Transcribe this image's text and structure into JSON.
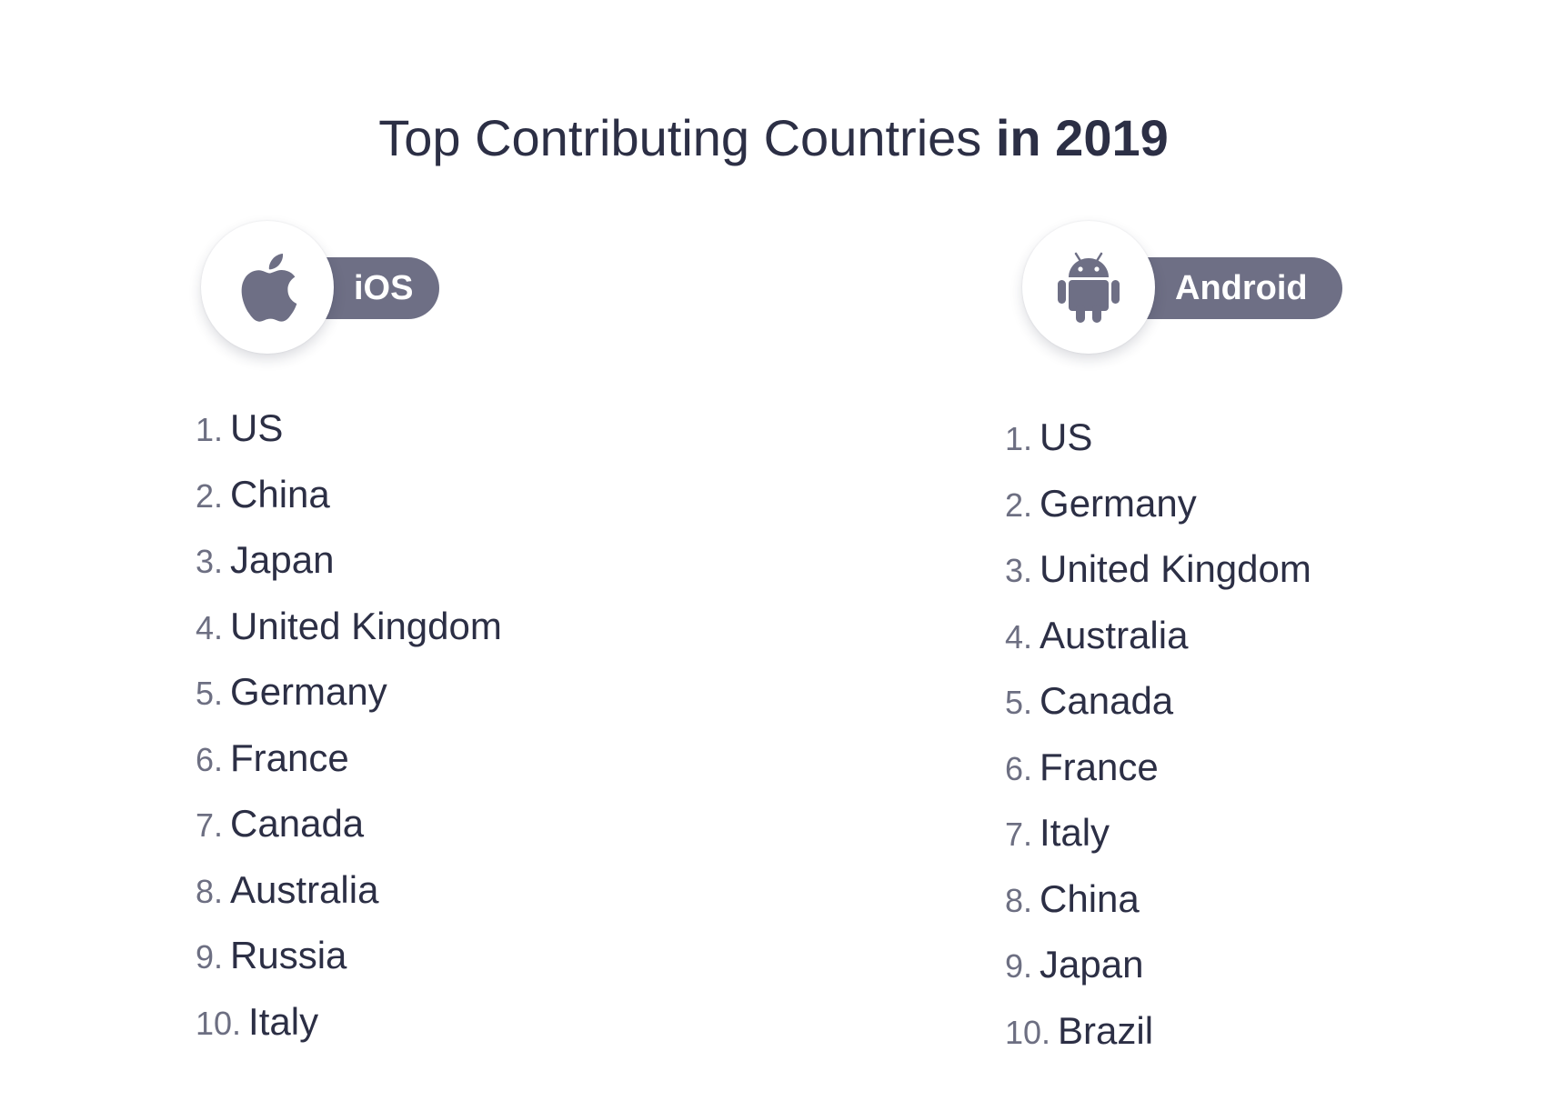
{
  "title": {
    "main": "Top Contributing Countries",
    "emphasis": "in 2019"
  },
  "colors": {
    "text_dark": "#2c2f45",
    "number_gray": "#6d6f82",
    "badge_fill": "#6e6f85",
    "icon_fill": "#6e6f85"
  },
  "ios": {
    "label": "iOS",
    "icon": "apple-icon",
    "countries": [
      {
        "rank": "1.",
        "name": "US"
      },
      {
        "rank": "2.",
        "name": "China"
      },
      {
        "rank": "3.",
        "name": "Japan"
      },
      {
        "rank": "4.",
        "name": "United Kingdom"
      },
      {
        "rank": "5.",
        "name": "Germany"
      },
      {
        "rank": "6.",
        "name": "France"
      },
      {
        "rank": "7.",
        "name": "Canada"
      },
      {
        "rank": "8.",
        "name": "Australia"
      },
      {
        "rank": "9.",
        "name": "Russia"
      },
      {
        "rank": "10.",
        "name": "Italy"
      }
    ]
  },
  "android": {
    "label": "Android",
    "icon": "android-icon",
    "countries": [
      {
        "rank": "1.",
        "name": "US"
      },
      {
        "rank": "2.",
        "name": "Germany"
      },
      {
        "rank": "3.",
        "name": "United Kingdom"
      },
      {
        "rank": "4.",
        "name": "Australia"
      },
      {
        "rank": "5.",
        "name": "Canada"
      },
      {
        "rank": "6.",
        "name": "France"
      },
      {
        "rank": "7.",
        "name": "Italy"
      },
      {
        "rank": "8.",
        "name": "China"
      },
      {
        "rank": "9.",
        "name": "Japan"
      },
      {
        "rank": "10.",
        "name": "Brazil"
      }
    ]
  }
}
